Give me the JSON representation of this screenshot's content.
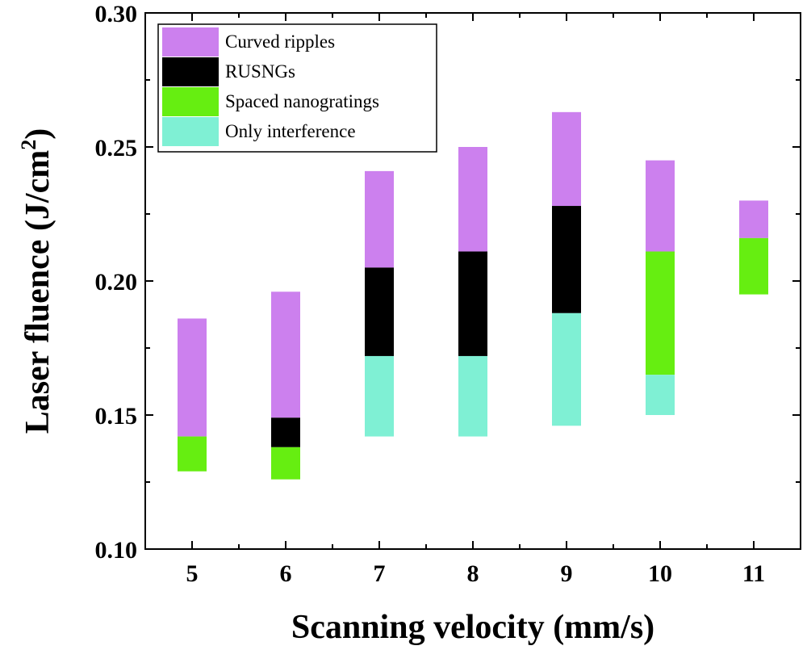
{
  "chart_data": {
    "type": "bar",
    "subtype": "floating-stacked-range",
    "title": "",
    "xlabel": "Scanning velocity (mm/s)",
    "ylabel_main": "Laser fluence (J/cm",
    "ylabel_sup": "2",
    "ylabel_close": ")",
    "ylim": [
      0.1,
      0.3
    ],
    "xlim": [
      4.5,
      11.5
    ],
    "yticks": [
      "0.10",
      "0.15",
      "0.20",
      "0.25",
      "0.30"
    ],
    "ytick_values": [
      0.1,
      0.15,
      0.2,
      0.25,
      0.3
    ],
    "categories": [
      "5",
      "6",
      "7",
      "8",
      "9",
      "10",
      "11"
    ],
    "x_values": [
      5,
      6,
      7,
      8,
      9,
      10,
      11
    ],
    "legend_position": "top-left",
    "series": [
      {
        "name": "Curved ripples",
        "color": "#CC80EE",
        "ranges": [
          [
            0.142,
            0.186
          ],
          [
            0.149,
            0.196
          ],
          [
            0.205,
            0.241
          ],
          [
            0.211,
            0.25
          ],
          [
            0.228,
            0.263
          ],
          [
            0.211,
            0.245
          ],
          [
            0.216,
            0.23
          ]
        ]
      },
      {
        "name": "RUSNGs",
        "color": "#000000",
        "ranges": [
          null,
          [
            0.138,
            0.149
          ],
          [
            0.172,
            0.205
          ],
          [
            0.172,
            0.211
          ],
          [
            0.188,
            0.228
          ],
          null,
          null
        ]
      },
      {
        "name": "Spaced nanogratings",
        "color": "#66EE11",
        "ranges": [
          [
            0.129,
            0.142
          ],
          [
            0.126,
            0.138
          ],
          null,
          null,
          null,
          [
            0.165,
            0.211
          ],
          [
            0.195,
            0.216
          ]
        ]
      },
      {
        "name": "Only interference",
        "color": "#7FF0D4",
        "ranges": [
          null,
          null,
          [
            0.142,
            0.172
          ],
          [
            0.142,
            0.172
          ],
          [
            0.146,
            0.188
          ],
          [
            0.15,
            0.165
          ],
          null
        ]
      }
    ]
  }
}
